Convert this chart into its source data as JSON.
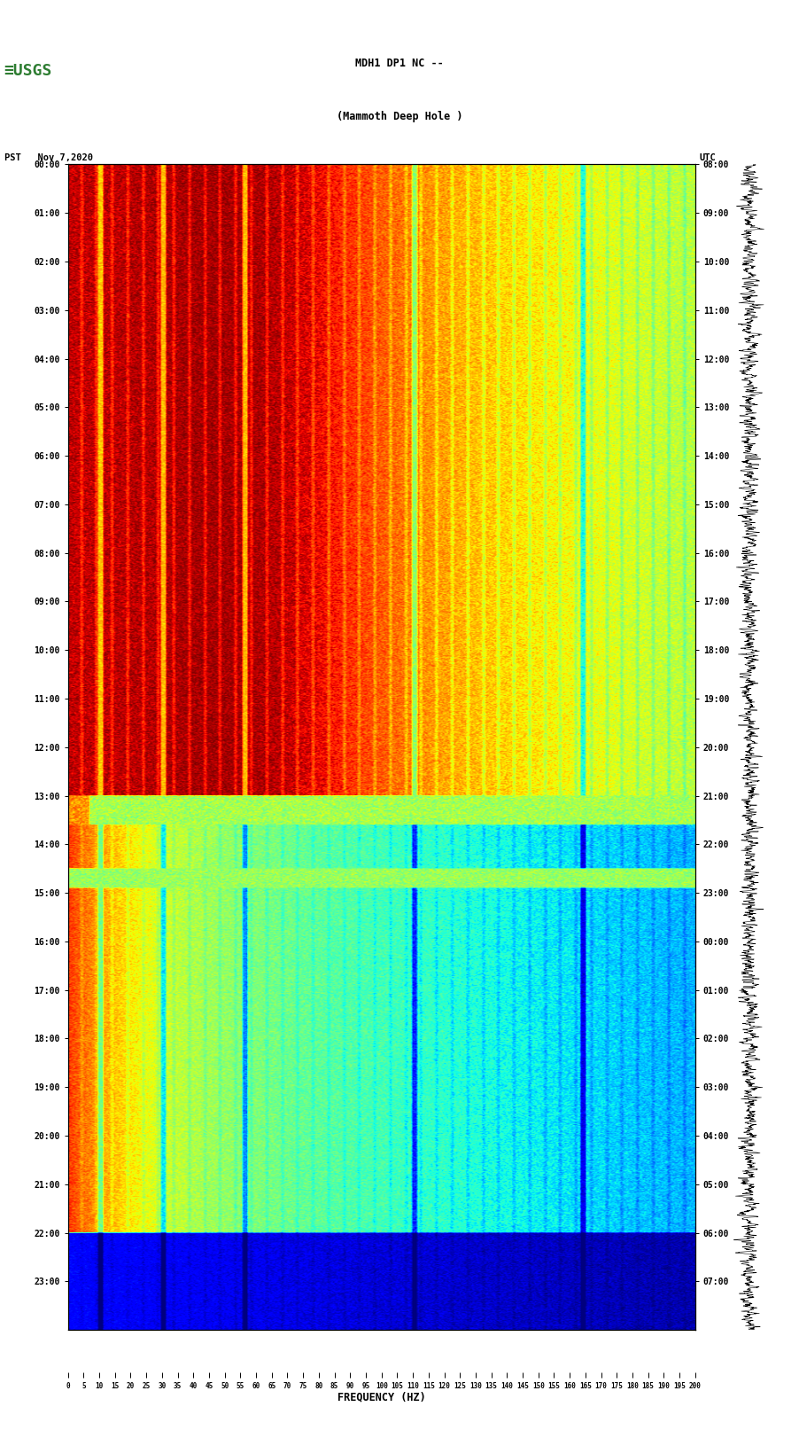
{
  "title_line1": "MDH1 DP1 NC --",
  "title_line2": "(Mammoth Deep Hole )",
  "date_label": "PST   Nov 7,2020",
  "utc_label": "UTC",
  "xlabel": "FREQUENCY (HZ)",
  "freq_max": 200,
  "freq_ticks": [
    0,
    5,
    10,
    15,
    20,
    25,
    30,
    35,
    40,
    45,
    50,
    55,
    60,
    65,
    70,
    75,
    80,
    85,
    90,
    95,
    100,
    105,
    110,
    115,
    120,
    125,
    130,
    135,
    140,
    145,
    150,
    155,
    160,
    165,
    170,
    175,
    180,
    185,
    190,
    195,
    200
  ],
  "time_labels_left": [
    "00:00",
    "01:00",
    "02:00",
    "03:00",
    "04:00",
    "05:00",
    "06:00",
    "07:00",
    "08:00",
    "09:00",
    "10:00",
    "11:00",
    "12:00",
    "13:00",
    "14:00",
    "15:00",
    "16:00",
    "17:00",
    "18:00",
    "19:00",
    "20:00",
    "21:00",
    "22:00",
    "23:00"
  ],
  "time_labels_right": [
    "08:00",
    "09:00",
    "10:00",
    "11:00",
    "12:00",
    "13:00",
    "14:00",
    "15:00",
    "16:00",
    "17:00",
    "18:00",
    "19:00",
    "20:00",
    "21:00",
    "22:00",
    "23:00",
    "00:00",
    "01:00",
    "02:00",
    "03:00",
    "04:00",
    "05:00",
    "06:00",
    "07:00"
  ],
  "background_color": "#ffffff",
  "colormap": "jet",
  "usgs_logo_color": "#2e7d32",
  "waveform_color": "#000000",
  "n_time": 1440,
  "n_freq": 600,
  "transition_hour": 13,
  "blue_hour": 22,
  "total_hours": 24,
  "figwidth": 9.02,
  "figheight": 16.13,
  "dpi": 100
}
